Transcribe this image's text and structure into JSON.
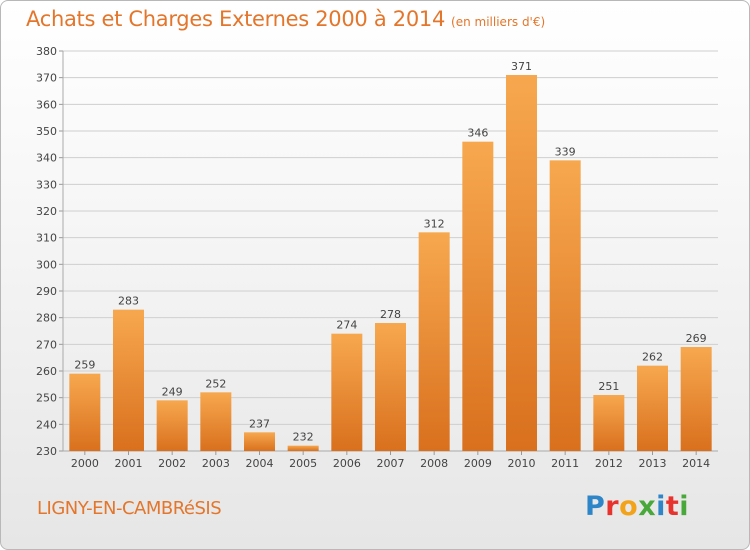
{
  "header": {
    "title": "Achats et Charges Externes 2000 à 2014",
    "subtitle": "(en milliers d'€)"
  },
  "footer": {
    "town": "LIGNY-EN-CAMBRéSIS",
    "logo_text": "Proxiti",
    "logo_colors": [
      "#2e86c9",
      "#e8322d",
      "#f2a31a",
      "#49a83a",
      "#2e86c9",
      "#e8322d",
      "#49a83a"
    ]
  },
  "colors": {
    "bar_light": "#f7a84f",
    "bar_dark": "#d9701e",
    "accent": "#e3762b",
    "grid": "#cfcfcf"
  },
  "chart_data": {
    "type": "bar",
    "categories": [
      "2000",
      "2001",
      "2002",
      "2003",
      "2004",
      "2005",
      "2006",
      "2007",
      "2008",
      "2009",
      "2010",
      "2011",
      "2012",
      "2013",
      "2014"
    ],
    "values": [
      259,
      283,
      249,
      252,
      237,
      232,
      274,
      278,
      312,
      346,
      371,
      339,
      251,
      262,
      269
    ],
    "ylim": [
      230,
      380
    ],
    "yticks": [
      230,
      240,
      250,
      260,
      270,
      280,
      290,
      300,
      310,
      320,
      330,
      340,
      350,
      360,
      370,
      380
    ],
    "grid": true,
    "data_labels": true
  }
}
